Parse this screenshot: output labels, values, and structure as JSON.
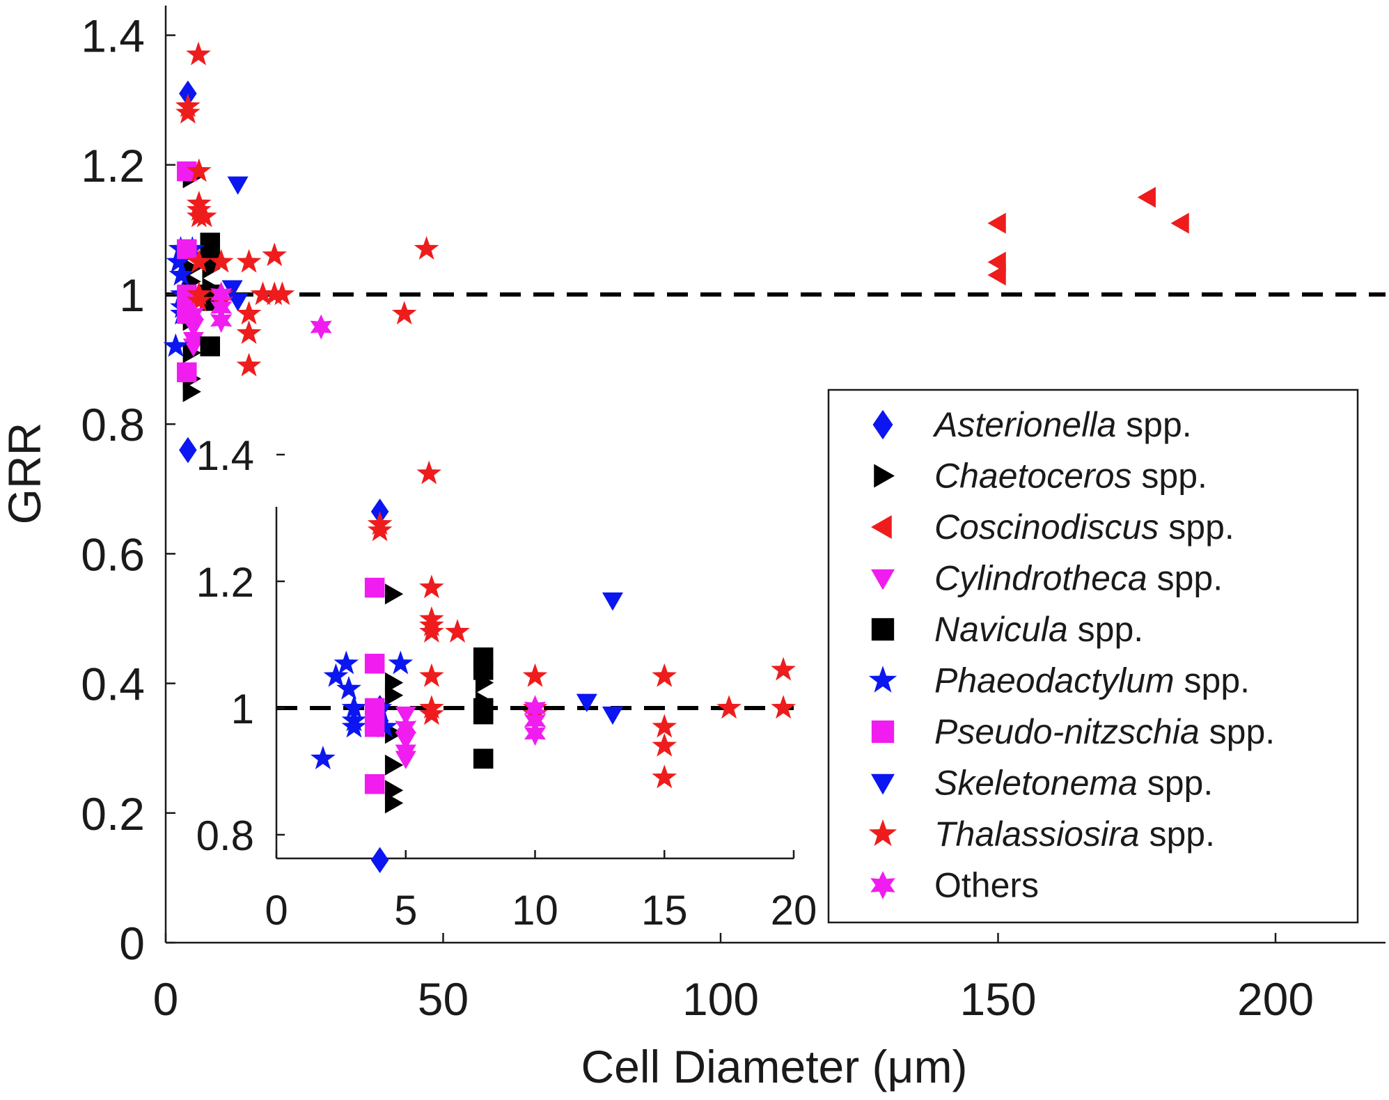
{
  "chart_data": {
    "type": "scatter",
    "main": {
      "xlabel": "Cell Diameter (μm)",
      "ylabel": "GRR",
      "xlim": [
        0,
        220
      ],
      "ylim": [
        0,
        1.45
      ],
      "xticks": [
        "0",
        "50",
        "100",
        "150",
        "200"
      ],
      "yticks": [
        "0",
        "0.2",
        "0.4",
        "0.6",
        "0.8",
        "1",
        "1.2",
        "1.4"
      ],
      "reference_line": 1
    },
    "inset": {
      "xlim": [
        0,
        20
      ],
      "ylim": [
        0.73,
        1.41
      ],
      "xticks": [
        "0",
        "5",
        "10",
        "15",
        "20"
      ],
      "yticks": [
        "0.8",
        "1",
        "1.2",
        "1.4"
      ],
      "reference_line": 1
    },
    "colors": {
      "blue": "#0b16f0",
      "black": "#000000",
      "red": "#ee1c1c",
      "magenta": "#f01cf0"
    },
    "series": [
      {
        "name": "Asterionella",
        "suffix": "spp.",
        "marker": "diamond",
        "color": "#0b16f0",
        "points": [
          [
            4,
            1.31
          ],
          [
            4,
            1.0
          ],
          [
            4,
            0.98
          ],
          [
            4,
            0.76
          ]
        ]
      },
      {
        "name": "Chaetoceros",
        "suffix": "spp.",
        "marker": "triangle-right",
        "color": "#000000",
        "points": [
          [
            4.5,
            1.18
          ],
          [
            4.5,
            1.04
          ],
          [
            4.5,
            1.02
          ],
          [
            4.5,
            0.96
          ],
          [
            4.5,
            0.91
          ],
          [
            4.5,
            0.87
          ],
          [
            4.5,
            0.85
          ],
          [
            8,
            1.04
          ],
          [
            8,
            1.01
          ]
        ]
      },
      {
        "name": "Coscinodiscus",
        "suffix": "spp.",
        "marker": "triangle-left",
        "color": "#ee1c1c",
        "points": [
          [
            150,
            1.11
          ],
          [
            150,
            1.05
          ],
          [
            150,
            1.03
          ],
          [
            177,
            1.15
          ],
          [
            183,
            1.11
          ]
        ]
      },
      {
        "name": "Cylindrotheca",
        "suffix": "spp.",
        "marker": "triangle-down",
        "color": "#f01cf0",
        "points": [
          [
            5,
            0.99
          ],
          [
            5,
            0.95
          ],
          [
            5,
            0.93
          ],
          [
            5,
            0.92
          ]
        ]
      },
      {
        "name": "Navicula",
        "suffix": "spp.",
        "marker": "square",
        "color": "#000000",
        "points": [
          [
            8,
            1.08
          ],
          [
            8,
            1.06
          ],
          [
            8,
            1.0
          ],
          [
            8,
            0.99
          ],
          [
            8,
            0.92
          ]
        ]
      },
      {
        "name": "Phaeodactylum",
        "suffix": "spp.",
        "marker": "star5",
        "color": "#0b16f0",
        "points": [
          [
            1.8,
            0.92
          ],
          [
            2.3,
            1.05
          ],
          [
            2.7,
            1.07
          ],
          [
            2.8,
            1.03
          ],
          [
            3,
            1.0
          ],
          [
            3,
            0.98
          ],
          [
            3,
            0.97
          ],
          [
            4,
            1.0
          ],
          [
            4.2,
            0.97
          ],
          [
            4.8,
            1.07
          ]
        ]
      },
      {
        "name": "Pseudo-nitzschia",
        "suffix": "spp.",
        "marker": "square",
        "color": "#f01cf0",
        "points": [
          [
            3.8,
            1.19
          ],
          [
            3.8,
            1.07
          ],
          [
            3.8,
            1.0
          ],
          [
            3.8,
            0.97
          ],
          [
            3.8,
            0.88
          ]
        ]
      },
      {
        "name": "Skeletonema",
        "suffix": "spp.",
        "marker": "triangle-down",
        "color": "#0b16f0",
        "points": [
          [
            12,
            1.01
          ],
          [
            13,
            0.99
          ],
          [
            13,
            1.17
          ]
        ]
      },
      {
        "name": "Thalassiosira",
        "suffix": "spp.",
        "marker": "star5",
        "color": "#ee1c1c",
        "points": [
          [
            4,
            1.29
          ],
          [
            4,
            1.28
          ],
          [
            5.9,
            1.37
          ],
          [
            6,
            1.19
          ],
          [
            6,
            1.14
          ],
          [
            6,
            1.13
          ],
          [
            6,
            1.12
          ],
          [
            6,
            1.05
          ],
          [
            6,
            1.0
          ],
          [
            6,
            0.99
          ],
          [
            7,
            1.12
          ],
          [
            10,
            1.05
          ],
          [
            10,
            1.0
          ],
          [
            10,
            0.99
          ],
          [
            15,
            1.05
          ],
          [
            15,
            0.97
          ],
          [
            15,
            0.94
          ],
          [
            15,
            0.89
          ],
          [
            17.5,
            1.0
          ],
          [
            19.6,
            1.06
          ],
          [
            19.6,
            1.0
          ],
          [
            21,
            1.0
          ],
          [
            43,
            0.97
          ],
          [
            47,
            1.07
          ]
        ]
      },
      {
        "name": "Others",
        "suffix": "",
        "marker": "star6",
        "color": "#f01cf0",
        "points": [
          [
            5,
            0.97
          ],
          [
            10,
            1.0
          ],
          [
            10,
            0.98
          ],
          [
            10,
            0.96
          ],
          [
            28,
            0.95
          ]
        ]
      }
    ]
  }
}
